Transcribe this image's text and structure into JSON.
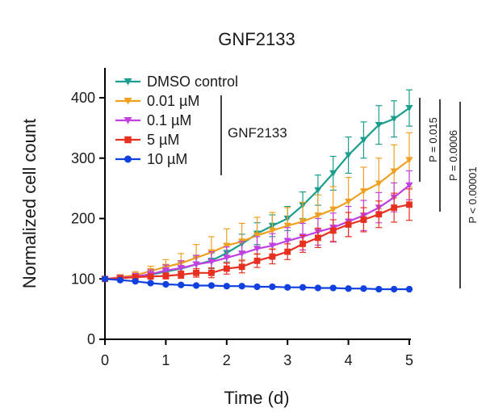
{
  "chart_data": {
    "type": "line",
    "title": "GNF2133",
    "xlabel": "Time (d)",
    "ylabel": "Normalized cell count",
    "xlim": [
      0,
      5
    ],
    "ylim": [
      0,
      450
    ],
    "xticks": [
      "0",
      "1",
      "2",
      "3",
      "4",
      "5"
    ],
    "yticks": [
      "0",
      "100",
      "200",
      "300",
      "400"
    ],
    "group_label": "GNF2133",
    "x": [
      0,
      0.25,
      0.5,
      0.75,
      1,
      1.25,
      1.5,
      1.75,
      2,
      2.25,
      2.5,
      2.75,
      3,
      3.25,
      3.5,
      3.75,
      4,
      4.25,
      4.5,
      4.75,
      5
    ],
    "series": [
      {
        "name": "DMSO control",
        "color": "#1b9e8e",
        "marker": "triangle-down",
        "values": [
          100,
          102,
          104,
          107,
          112,
          117,
          124,
          130,
          143,
          158,
          175,
          188,
          200,
          222,
          247,
          275,
          305,
          330,
          355,
          365,
          383
        ],
        "errors": [
          2,
          3,
          4,
          6,
          8,
          10,
          12,
          13,
          15,
          16,
          18,
          18,
          20,
          22,
          25,
          28,
          30,
          30,
          32,
          30,
          30
        ]
      },
      {
        "name": "0.01 µM",
        "color": "#f0a020",
        "marker": "triangle-down",
        "values": [
          100,
          103,
          106,
          113,
          120,
          126,
          135,
          144,
          155,
          162,
          172,
          180,
          188,
          195,
          205,
          215,
          228,
          245,
          258,
          278,
          297
        ],
        "errors": [
          2,
          3,
          6,
          8,
          12,
          16,
          22,
          26,
          28,
          30,
          30,
          30,
          30,
          32,
          34,
          38,
          40,
          40,
          42,
          44,
          45
        ]
      },
      {
        "name": "0.1 µM",
        "color": "#c040e0",
        "marker": "triangle-down",
        "values": [
          100,
          102,
          104,
          108,
          114,
          118,
          124,
          128,
          135,
          142,
          150,
          155,
          163,
          170,
          178,
          185,
          195,
          205,
          218,
          235,
          255
        ],
        "errors": [
          2,
          3,
          5,
          7,
          9,
          12,
          15,
          17,
          18,
          20,
          20,
          20,
          22,
          22,
          22,
          24,
          25,
          25,
          25,
          24,
          24
        ]
      },
      {
        "name": "5 µM",
        "color": "#e83020",
        "marker": "square",
        "values": [
          100,
          101,
          103,
          104,
          105,
          107,
          110,
          110,
          117,
          120,
          130,
          137,
          145,
          158,
          168,
          180,
          190,
          198,
          207,
          218,
          223
        ],
        "errors": [
          2,
          2,
          3,
          4,
          5,
          6,
          7,
          8,
          9,
          10,
          11,
          12,
          13,
          14,
          16,
          18,
          20,
          20,
          22,
          24,
          26
        ]
      },
      {
        "name": "10 µM",
        "color": "#1040e0",
        "marker": "circle",
        "values": [
          100,
          98,
          96,
          93,
          91,
          90,
          89,
          89,
          88,
          88,
          87,
          87,
          86,
          86,
          85,
          85,
          84,
          84,
          83,
          83,
          83
        ],
        "errors": [
          1,
          1,
          1,
          1,
          1,
          1,
          1,
          1,
          1,
          1,
          1,
          1,
          1,
          1,
          1,
          1,
          1,
          1,
          1,
          1,
          1
        ]
      }
    ],
    "annotations": [
      "P = 0.015",
      "P = 0.0006",
      "P < 0.00001"
    ]
  }
}
